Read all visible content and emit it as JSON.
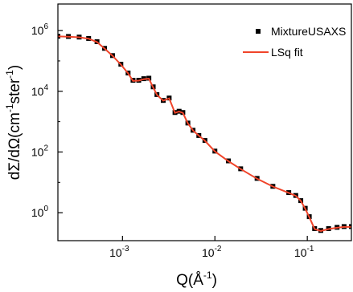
{
  "chart_data": {
    "type": "scatter",
    "x_label": [
      "Q(Å",
      "-1",
      ")"
    ],
    "y_label": [
      "dΣ/dΩ(cm",
      "-1",
      "ster",
      "-1",
      ")"
    ],
    "x": [
      0.0002,
      0.00026,
      0.00034,
      0.00043,
      0.00053,
      0.00064,
      0.00078,
      0.00096,
      0.00115,
      0.0013,
      0.0015,
      0.0017,
      0.00193,
      0.00215,
      0.00236,
      0.00276,
      0.0032,
      0.0037,
      0.0041,
      0.0045,
      0.0051,
      0.0058,
      0.0067,
      0.0078,
      0.01,
      0.014,
      0.019,
      0.0286,
      0.0424,
      0.063,
      0.075,
      0.085,
      0.095,
      0.105,
      0.12,
      0.14,
      0.17,
      0.21,
      0.25,
      0.3
    ],
    "series": [
      {
        "name": "MixtureUSAXS",
        "color": "#000000",
        "marker": "square",
        "values": [
          650000,
          640000,
          610000,
          550000,
          430000,
          260000,
          150000,
          78000,
          40000,
          23000,
          23000,
          26000,
          27000,
          14000,
          7800,
          5000,
          6000,
          2000,
          2200,
          2000,
          900,
          520,
          350,
          240,
          107,
          51,
          28,
          13.5,
          7.4,
          4.6,
          3.7,
          2.5,
          1.4,
          0.74,
          0.3,
          0.26,
          0.3,
          0.33,
          0.35,
          0.35
        ]
      },
      {
        "name": "LSq fit",
        "color": "#f0442a",
        "marker": "line",
        "values": [
          640000,
          630000,
          600000,
          540000,
          420000,
          255000,
          148000,
          76000,
          39000,
          22000,
          22500,
          25000,
          26000,
          13500,
          7600,
          4900,
          5800,
          1950,
          2150,
          1950,
          880,
          510,
          345,
          235,
          105,
          50,
          27.5,
          13.2,
          7.3,
          4.5,
          3.6,
          2.45,
          1.35,
          0.72,
          0.29,
          0.25,
          0.29,
          0.32,
          0.34,
          0.34
        ]
      }
    ],
    "log_x": true,
    "log_y": true,
    "xlim": [
      0.0002,
      0.3
    ],
    "ylim": [
      0.12,
      7500000
    ],
    "xticks": [
      {
        "value": 0.001,
        "label": "10",
        "exponent": "-3"
      },
      {
        "value": 0.01,
        "label": "10",
        "exponent": "-2"
      },
      {
        "value": 0.1,
        "label": "10",
        "exponent": "-1"
      }
    ],
    "yticks": [
      {
        "value": 1,
        "label": "10",
        "exponent": "0"
      },
      {
        "value": 100,
        "label": "10",
        "exponent": "2"
      },
      {
        "value": 10000,
        "label": "10",
        "exponent": "4"
      },
      {
        "value": 1000000,
        "label": "10",
        "exponent": "6"
      }
    ],
    "yticks_minor": [
      10,
      1000,
      100000
    ],
    "legend": "upper right"
  }
}
